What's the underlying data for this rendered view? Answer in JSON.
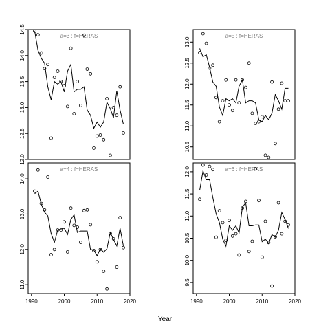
{
  "chart_data": {
    "type": "scatter",
    "xlabel": "Year",
    "panels": [
      {
        "title": "a=3  :  f=HERAS",
        "xlim": [
          1989,
          2020
        ],
        "ylim": [
          12.0,
          14.5
        ],
        "yticks": [
          "12.0",
          "12.5",
          "13.0",
          "13.5",
          "14.0",
          "14.5"
        ],
        "xticks": [],
        "observed": {
          "x": [
            1991,
            1992,
            1993,
            1994,
            1995,
            1996,
            1997,
            1998,
            1999,
            2000,
            2001,
            2002,
            2003,
            2004,
            2005,
            2006,
            2007,
            2008,
            2009,
            2010,
            2011,
            2012,
            2013,
            2014,
            2015,
            2016,
            2017,
            2018
          ],
          "y": [
            14.47,
            14.4,
            14.05,
            13.75,
            13.83,
            12.41,
            13.58,
            13.7,
            13.5,
            13.42,
            13.02,
            14.14,
            12.88,
            13.5,
            13.04,
            14.39,
            13.74,
            13.65,
            12.22,
            12.45,
            12.47,
            12.38,
            13.17,
            12.08,
            13.0,
            12.85,
            13.4,
            12.51
          ]
        },
        "fitted": {
          "x": [
            1991,
            1992,
            1993,
            1994,
            1995,
            1996,
            1997,
            1998,
            1999,
            2000,
            2001,
            2002,
            2003,
            2004,
            2005,
            2006,
            2007,
            2008,
            2009,
            2010,
            2011,
            2012,
            2013,
            2014,
            2015,
            2016,
            2017,
            2018
          ],
          "y": [
            14.47,
            14.1,
            13.95,
            13.85,
            13.4,
            13.15,
            13.5,
            13.45,
            13.5,
            13.3,
            13.7,
            13.83,
            13.3,
            13.35,
            13.35,
            13.4,
            12.95,
            12.85,
            12.6,
            12.72,
            12.62,
            12.72,
            13.1,
            12.98,
            12.8,
            13.32,
            12.95,
            12.68
          ]
        }
      },
      {
        "title": "a=5  :  f=HERAS",
        "xlim": [
          1989,
          2020
        ],
        "ylim": [
          10.2,
          13.3
        ],
        "yticks": [
          "10.5",
          "11.0",
          "11.5",
          "12.0",
          "12.5",
          "13.0"
        ],
        "xticks": [],
        "observed": {
          "x": [
            1991,
            1992,
            1993,
            1994,
            1995,
            1996,
            1997,
            1998,
            1999,
            2000,
            2001,
            2002,
            2003,
            2004,
            2005,
            2006,
            2007,
            2008,
            2009,
            2010,
            2011,
            2012,
            2013,
            2014,
            2015,
            2016,
            2017,
            2018
          ],
          "y": [
            12.75,
            13.2,
            12.97,
            12.38,
            12.45,
            11.68,
            11.1,
            11.6,
            12.1,
            11.5,
            11.37,
            12.1,
            11.55,
            12.1,
            11.92,
            12.5,
            11.3,
            11.06,
            11.1,
            11.22,
            10.3,
            10.25,
            12.05,
            10.58,
            11.4,
            12.02,
            11.6,
            11.6
          ]
        },
        "fitted": {
          "x": [
            1991,
            1992,
            1993,
            1994,
            1995,
            1996,
            1997,
            1998,
            1999,
            2000,
            2001,
            2002,
            2003,
            2004,
            2005,
            2006,
            2007,
            2008,
            2009,
            2010,
            2011,
            2012,
            2013,
            2014,
            2015,
            2016,
            2017,
            2018
          ],
          "y": [
            12.85,
            12.65,
            12.7,
            12.4,
            12.05,
            11.95,
            11.45,
            11.25,
            11.65,
            11.6,
            11.65,
            11.55,
            11.95,
            12.1,
            11.55,
            11.6,
            11.6,
            11.55,
            11.15,
            11.1,
            11.25,
            11.15,
            11.3,
            11.75,
            11.6,
            11.4,
            11.9,
            11.9
          ]
        }
      },
      {
        "title": "a=4  :  f=HERAS",
        "xlim": [
          1989,
          2020
        ],
        "ylim": [
          10.75,
          14.45
        ],
        "yticks": [
          "11.0",
          "12.0",
          "13.0",
          "14.0"
        ],
        "xticks": [
          "1990",
          "2000",
          "2010",
          "2020"
        ],
        "observed": {
          "x": [
            1991,
            1992,
            1993,
            1994,
            1995,
            1996,
            1997,
            1998,
            1999,
            2000,
            2001,
            2002,
            2003,
            2004,
            2005,
            2006,
            2007,
            2008,
            2009,
            2010,
            2011,
            2012,
            2013,
            2014,
            2015,
            2016,
            2017,
            2018
          ],
          "y": [
            13.65,
            14.25,
            13.3,
            13.12,
            14.05,
            11.85,
            12.0,
            12.55,
            12.55,
            12.78,
            11.93,
            13.17,
            12.68,
            12.63,
            12.2,
            13.1,
            13.12,
            12.7,
            11.97,
            11.65,
            12.0,
            11.38,
            10.88,
            12.45,
            12.3,
            11.5,
            12.9,
            12.05
          ]
        },
        "fitted": {
          "x": [
            1991,
            1992,
            1993,
            1994,
            1995,
            1996,
            1997,
            1998,
            1999,
            2000,
            2001,
            2002,
            2003,
            2004,
            2005,
            2006,
            2007,
            2008,
            2009,
            2010,
            2011,
            2012,
            2013,
            2014,
            2015,
            2016,
            2017,
            2018
          ],
          "y": [
            13.58,
            13.65,
            13.28,
            13.05,
            12.95,
            12.45,
            12.2,
            12.55,
            12.58,
            12.6,
            12.42,
            12.85,
            12.98,
            12.48,
            12.52,
            12.52,
            12.52,
            12.0,
            11.98,
            11.82,
            12.02,
            11.92,
            12.02,
            12.48,
            12.28,
            12.1,
            12.6,
            12.1
          ]
        }
      },
      {
        "title": "a=6  :  f=HERAS",
        "xlim": [
          1989,
          2020
        ],
        "ylim": [
          9.25,
          12.2
        ],
        "yticks": [
          "9.5",
          "10.0",
          "10.5",
          "11.0",
          "11.5",
          "12.0"
        ],
        "xticks": [
          "1990",
          "2000",
          "2010",
          "2020"
        ],
        "observed": {
          "x": [
            1991,
            1992,
            1993,
            1994,
            1995,
            1996,
            1997,
            1998,
            1999,
            2000,
            2001,
            2002,
            2003,
            2004,
            2005,
            2006,
            2007,
            2008,
            2009,
            2010,
            2011,
            2012,
            2013,
            2014,
            2015,
            2016,
            2017,
            2018
          ],
          "y": [
            11.38,
            12.15,
            11.93,
            12.12,
            12.05,
            10.52,
            11.12,
            10.85,
            10.45,
            10.9,
            10.55,
            10.6,
            10.12,
            11.18,
            11.33,
            10.2,
            10.43,
            12.07,
            11.35,
            10.07,
            10.88,
            10.4,
            9.42,
            10.53,
            11.3,
            10.6,
            10.88,
            10.8
          ]
        },
        "fitted": {
          "x": [
            1991,
            1992,
            1993,
            1994,
            1995,
            1996,
            1997,
            1998,
            1999,
            2000,
            2001,
            2002,
            2003,
            2004,
            2005,
            2006,
            2007,
            2008,
            2009,
            2010,
            2011,
            2012,
            2013,
            2014,
            2015,
            2016,
            2017,
            2018
          ],
          "y": [
            11.58,
            12.02,
            11.82,
            11.82,
            11.42,
            11.05,
            10.85,
            10.48,
            10.32,
            10.78,
            10.68,
            10.78,
            10.62,
            11.2,
            11.3,
            10.78,
            10.78,
            10.8,
            10.8,
            10.42,
            10.48,
            10.38,
            10.58,
            10.52,
            10.68,
            11.08,
            10.92,
            10.72
          ]
        }
      }
    ]
  }
}
